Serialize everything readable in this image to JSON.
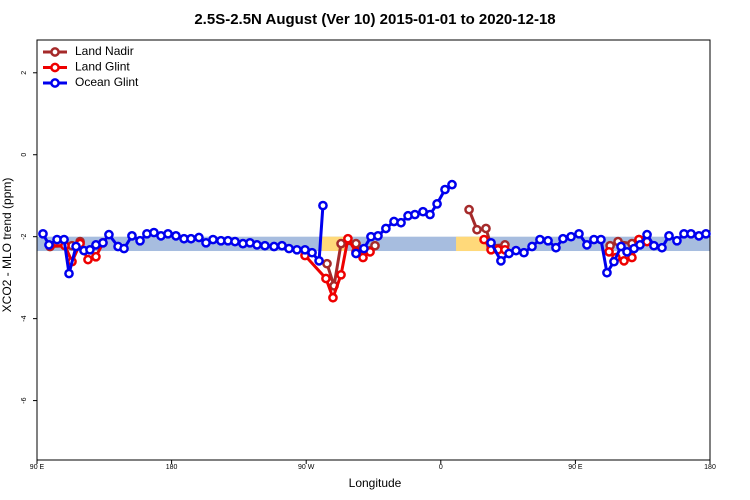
{
  "chart_data": {
    "type": "line",
    "title": "2.5S-2.5N August (Ver 10)   2015-01-01 to 2020-12-18",
    "x_label": "Longitude",
    "y_label": "XCO2 - MLO trend (ppm)",
    "xlim": [
      90,
      540
    ],
    "ylim": [
      -7.45,
      2.8
    ],
    "xticks": [
      {
        "value": 90,
        "label": "90 E"
      },
      180,
      {
        "value": 270,
        "label": "90 W"
      },
      {
        "value": 360,
        "label": "0"
      },
      {
        "value": 450,
        "label": "90 E"
      },
      {
        "value": 540,
        "label": "180"
      }
    ],
    "yticks": [
      2,
      0,
      -2,
      -4,
      -6
    ],
    "legend": "top-left",
    "reference_band": {
      "range": [
        -2.35,
        -2.0
      ],
      "color": "#a7bddf"
    },
    "land_bands": [
      {
        "range": [
          280.6,
          297.3
        ],
        "color": "#ffd97a"
      },
      {
        "range": [
          370.2,
          390.2
        ],
        "color": "#ffd97a"
      }
    ],
    "series": [
      {
        "name": "Land Nadir",
        "color": "#a52a2a",
        "x": [
          98.7,
          113.4,
          118.8,
          null,
          283.9,
          288.6,
          293.3,
          303.3,
          308.0,
          316.0,
          null,
          378.9,
          384.2,
          390.2,
          393.6,
          402.9,
          null,
          473.2,
          478.5,
          487.8,
          492.5
        ],
        "values": [
          -2.24,
          -2.22,
          -2.12,
          null,
          -2.66,
          -3.2,
          -2.17,
          -2.17,
          -2.32,
          -2.22,
          null,
          -1.34,
          -1.83,
          -1.8,
          -2.22,
          -2.2,
          null,
          -2.22,
          -2.12,
          -2.17,
          -2.07
        ]
      },
      {
        "name": "Land Glint",
        "color": "#ee0000",
        "x": [
          98.7,
          108.7,
          113.4,
          118.8,
          124.1,
          129.4,
          134.1,
          null,
          269.2,
          283.2,
          287.9,
          293.3,
          297.9,
          303.3,
          308.0,
          312.7,
          null,
          388.9,
          393.6,
          398.2,
          402.9,
          null,
          472.5,
          477.1,
          482.5,
          487.8,
          492.5,
          497.9
        ],
        "values": [
          -2.22,
          -2.22,
          -2.61,
          -2.17,
          -2.56,
          -2.49,
          -2.15,
          null,
          -2.46,
          -3.02,
          -3.49,
          -2.93,
          -2.05,
          -2.37,
          -2.51,
          -2.37,
          null,
          -2.07,
          -2.32,
          -2.32,
          -2.32,
          null,
          -2.37,
          -2.51,
          -2.59,
          -2.51,
          -2.07,
          -2.12
        ]
      },
      {
        "name": "Ocean Glint",
        "color": "#0000ee",
        "x": [
          94.0,
          98.0,
          103.4,
          108.1,
          111.4,
          116.1,
          121.4,
          125.4,
          129.4,
          134.1,
          138.1,
          144.2,
          148.2,
          153.5,
          158.9,
          163.5,
          168.2,
          172.9,
          177.6,
          182.9,
          188.3,
          193.0,
          198.3,
          203.0,
          207.7,
          213.0,
          217.7,
          222.4,
          227.7,
          232.4,
          237.1,
          242.4,
          248.5,
          253.8,
          258.5,
          263.8,
          269.2,
          273.9,
          278.6,
          281.2,
          null,
          303.3,
          308.6,
          313.3,
          318.0,
          323.3,
          328.7,
          333.4,
          338.1,
          342.7,
          348.1,
          352.8,
          357.5,
          362.8,
          367.5,
          null,
          393.6,
          400.2,
          405.6,
          410.3,
          415.6,
          421.0,
          426.3,
          431.7,
          437.0,
          441.7,
          447.1,
          452.4,
          457.7,
          462.4,
          467.1,
          471.1,
          475.8,
          480.5,
          484.5,
          489.2,
          493.2,
          497.9,
          502.5,
          507.9,
          512.6,
          517.9,
          522.6,
          527.3,
          532.6,
          537.3
        ],
        "values": [
          -1.93,
          -2.2,
          -2.07,
          -2.07,
          -2.9,
          -2.24,
          -2.34,
          -2.32,
          -2.2,
          -2.15,
          -1.95,
          -2.24,
          -2.29,
          -1.98,
          -2.1,
          -1.93,
          -1.9,
          -1.98,
          -1.93,
          -1.98,
          -2.05,
          -2.05,
          -2.02,
          -2.15,
          -2.07,
          -2.1,
          -2.1,
          -2.12,
          -2.17,
          -2.15,
          -2.2,
          -2.22,
          -2.24,
          -2.22,
          -2.29,
          -2.32,
          -2.32,
          -2.39,
          -2.59,
          -1.24,
          null,
          -2.41,
          -2.29,
          -2.0,
          -1.98,
          -1.8,
          -1.63,
          -1.66,
          -1.49,
          -1.46,
          -1.39,
          -1.46,
          -1.2,
          -0.85,
          -0.73,
          null,
          -2.15,
          -2.59,
          -2.41,
          -2.34,
          -2.39,
          -2.24,
          -2.07,
          -2.1,
          -2.27,
          -2.05,
          -2.0,
          -1.93,
          -2.2,
          -2.07,
          -2.07,
          -2.88,
          -2.61,
          -2.24,
          -2.37,
          -2.29,
          -2.2,
          -1.95,
          -2.22,
          -2.27,
          -1.98,
          -2.1,
          -1.93,
          -1.93,
          -1.98,
          -1.93
        ]
      }
    ]
  }
}
